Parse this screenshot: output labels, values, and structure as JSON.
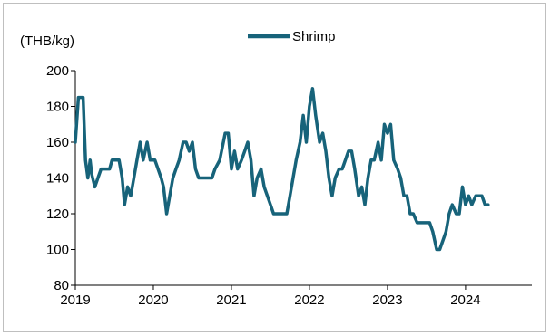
{
  "chart_data": {
    "type": "line",
    "title": "",
    "unit_label": "(THB/kg)",
    "xlabel": "",
    "ylabel": "",
    "ylim": [
      80,
      200
    ],
    "yticks": [
      80,
      100,
      120,
      140,
      160,
      180,
      200
    ],
    "xlim": [
      2019,
      2024.85
    ],
    "xticks": [
      2019,
      2020,
      2021,
      2022,
      2023,
      2024
    ],
    "xtick_labels": [
      "2019",
      "2020",
      "2021",
      "2022",
      "2023",
      "2024"
    ],
    "grid": false,
    "legend_position": "top-center",
    "series": [
      {
        "name": "Shrimp",
        "color": "#17637a",
        "points": [
          [
            2019.0,
            160
          ],
          [
            2019.04,
            185
          ],
          [
            2019.1,
            185
          ],
          [
            2019.13,
            150
          ],
          [
            2019.16,
            140
          ],
          [
            2019.19,
            150
          ],
          [
            2019.21,
            142
          ],
          [
            2019.25,
            135
          ],
          [
            2019.29,
            140
          ],
          [
            2019.33,
            145
          ],
          [
            2019.44,
            145
          ],
          [
            2019.47,
            150
          ],
          [
            2019.56,
            150
          ],
          [
            2019.6,
            140
          ],
          [
            2019.63,
            125
          ],
          [
            2019.67,
            135
          ],
          [
            2019.71,
            130
          ],
          [
            2019.75,
            140
          ],
          [
            2019.79,
            150
          ],
          [
            2019.83,
            160
          ],
          [
            2019.87,
            150
          ],
          [
            2019.92,
            160
          ],
          [
            2019.96,
            150
          ],
          [
            2020.02,
            150
          ],
          [
            2020.06,
            145
          ],
          [
            2020.1,
            140
          ],
          [
            2020.13,
            135
          ],
          [
            2020.17,
            120
          ],
          [
            2020.21,
            130
          ],
          [
            2020.25,
            140
          ],
          [
            2020.29,
            145
          ],
          [
            2020.33,
            150
          ],
          [
            2020.38,
            160
          ],
          [
            2020.42,
            160
          ],
          [
            2020.46,
            155
          ],
          [
            2020.5,
            160
          ],
          [
            2020.54,
            145
          ],
          [
            2020.58,
            140
          ],
          [
            2020.75,
            140
          ],
          [
            2020.79,
            145
          ],
          [
            2020.85,
            150
          ],
          [
            2020.92,
            165
          ],
          [
            2020.96,
            165
          ],
          [
            2021.0,
            145
          ],
          [
            2021.04,
            155
          ],
          [
            2021.08,
            145
          ],
          [
            2021.13,
            150
          ],
          [
            2021.17,
            155
          ],
          [
            2021.21,
            160
          ],
          [
            2021.25,
            150
          ],
          [
            2021.29,
            130
          ],
          [
            2021.33,
            140
          ],
          [
            2021.38,
            145
          ],
          [
            2021.42,
            135
          ],
          [
            2021.5,
            125
          ],
          [
            2021.54,
            120
          ],
          [
            2021.71,
            120
          ],
          [
            2021.75,
            130
          ],
          [
            2021.79,
            140
          ],
          [
            2021.83,
            150
          ],
          [
            2021.88,
            160
          ],
          [
            2021.92,
            175
          ],
          [
            2021.96,
            160
          ],
          [
            2022.0,
            180
          ],
          [
            2022.04,
            190
          ],
          [
            2022.08,
            175
          ],
          [
            2022.13,
            160
          ],
          [
            2022.17,
            165
          ],
          [
            2022.21,
            155
          ],
          [
            2022.25,
            140
          ],
          [
            2022.29,
            130
          ],
          [
            2022.33,
            140
          ],
          [
            2022.38,
            145
          ],
          [
            2022.42,
            145
          ],
          [
            2022.46,
            150
          ],
          [
            2022.5,
            155
          ],
          [
            2022.54,
            155
          ],
          [
            2022.58,
            145
          ],
          [
            2022.63,
            130
          ],
          [
            2022.67,
            135
          ],
          [
            2022.71,
            125
          ],
          [
            2022.75,
            140
          ],
          [
            2022.79,
            150
          ],
          [
            2022.83,
            150
          ],
          [
            2022.88,
            160
          ],
          [
            2022.92,
            150
          ],
          [
            2022.96,
            170
          ],
          [
            2023.0,
            165
          ],
          [
            2023.04,
            170
          ],
          [
            2023.08,
            150
          ],
          [
            2023.13,
            145
          ],
          [
            2023.17,
            140
          ],
          [
            2023.21,
            130
          ],
          [
            2023.25,
            130
          ],
          [
            2023.29,
            120
          ],
          [
            2023.33,
            120
          ],
          [
            2023.38,
            115
          ],
          [
            2023.5,
            115
          ],
          [
            2023.54,
            115
          ],
          [
            2023.58,
            110
          ],
          [
            2023.63,
            100
          ],
          [
            2023.67,
            100
          ],
          [
            2023.71,
            105
          ],
          [
            2023.75,
            110
          ],
          [
            2023.79,
            120
          ],
          [
            2023.83,
            125
          ],
          [
            2023.88,
            120
          ],
          [
            2023.92,
            120
          ],
          [
            2023.96,
            135
          ],
          [
            2024.0,
            125
          ],
          [
            2024.04,
            130
          ],
          [
            2024.08,
            125
          ],
          [
            2024.13,
            130
          ],
          [
            2024.21,
            130
          ],
          [
            2024.25,
            125
          ],
          [
            2024.29,
            125
          ]
        ]
      }
    ]
  }
}
